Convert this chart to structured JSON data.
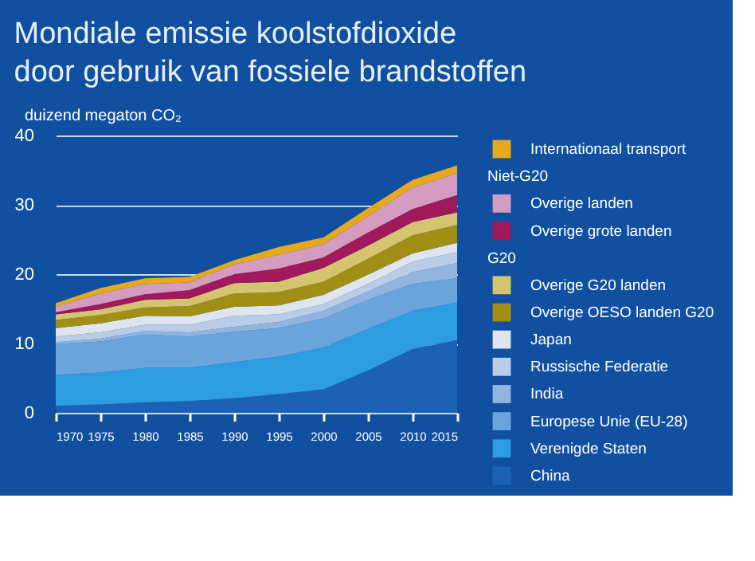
{
  "chart_data": {
    "type": "area",
    "stacked": true,
    "title": [
      "Mondiale emissie koolstofdioxide",
      "door gebruik van fossiele brandstoffen"
    ],
    "ylabel": "duizend megaton CO₂",
    "x": [
      1970,
      1975,
      1980,
      1985,
      1990,
      1995,
      2000,
      2005,
      2010,
      2015
    ],
    "xlim": [
      1970,
      2015
    ],
    "xticks": [
      1970,
      1975,
      1980,
      1985,
      1990,
      1995,
      2000,
      2005,
      2010,
      2015
    ],
    "ylim": [
      0,
      40
    ],
    "yticks": [
      0,
      10,
      20,
      30,
      40
    ],
    "grid": "y",
    "legend": "right",
    "annotations": [
      "Niet-G20",
      "G20"
    ],
    "series": [
      {
        "name": "China",
        "color": "#1b62b5",
        "values": [
          1.0,
          1.2,
          1.5,
          1.7,
          2.1,
          2.7,
          3.4,
          6.1,
          9.2,
          10.5
        ]
      },
      {
        "name": "Verenigde Staten",
        "color": "#2b9de0",
        "values": [
          4.5,
          4.6,
          5.0,
          4.8,
          5.2,
          5.4,
          6.0,
          6.0,
          5.5,
          5.4
        ]
      },
      {
        "name": "Europese Unie (EU-28)",
        "color": "#6aa4dc",
        "values": [
          4.4,
          4.5,
          4.8,
          4.5,
          4.4,
          4.1,
          4.2,
          4.2,
          3.9,
          3.5
        ]
      },
      {
        "name": "India",
        "color": "#90b4df",
        "values": [
          0.3,
          0.4,
          0.5,
          0.6,
          0.7,
          0.9,
          1.1,
          1.2,
          1.7,
          2.2
        ]
      },
      {
        "name": "Russische Federatie",
        "color": "#bacde6",
        "values": [
          0.8,
          0.9,
          0.9,
          1.1,
          1.6,
          1.1,
          1.0,
          1.1,
          1.5,
          1.6
        ]
      },
      {
        "name": "Japan",
        "color": "#dfe5ee",
        "values": [
          1.2,
          1.3,
          1.3,
          1.2,
          1.3,
          1.3,
          1.3,
          1.3,
          1.2,
          1.3
        ]
      },
      {
        "name": "Overige OESO landen G20",
        "color": "#a18f15",
        "values": [
          1.2,
          1.2,
          1.2,
          1.5,
          1.9,
          1.9,
          1.9,
          2.3,
          2.6,
          2.6
        ]
      },
      {
        "name": "Overige G20 landen",
        "color": "#d5c46e",
        "values": [
          0.8,
          0.8,
          1.1,
          1.1,
          1.5,
          1.5,
          2.0,
          1.9,
          1.9,
          1.8
        ]
      },
      {
        "name": "Overige grote landen",
        "color": "#a1185b",
        "values": [
          0.3,
          0.8,
          0.8,
          1.2,
          1.3,
          1.9,
          1.5,
          1.9,
          1.9,
          2.5
        ]
      },
      {
        "name": "Overige landen",
        "color": "#d59bc1",
        "values": [
          0.8,
          1.5,
          1.5,
          1.1,
          1.4,
          2.0,
          1.9,
          2.3,
          3.1,
          3.2
        ]
      },
      {
        "name": "Internationaal transport",
        "color": "#e5a91b",
        "values": [
          0.5,
          0.8,
          0.8,
          0.8,
          0.6,
          1.1,
          1.0,
          1.2,
          1.1,
          1.1
        ]
      }
    ]
  }
}
